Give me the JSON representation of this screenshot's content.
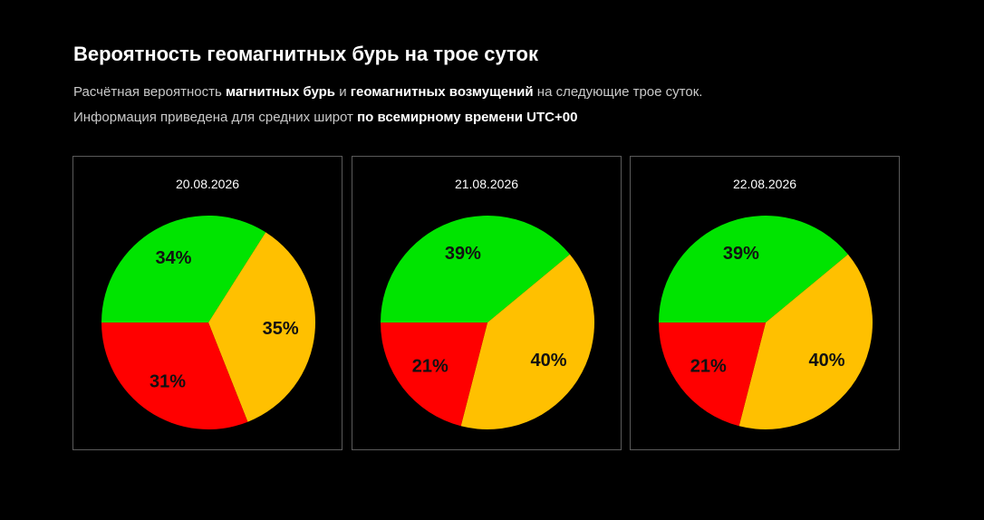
{
  "header": {
    "title": "Вероятность геомагнитных бурь на трое суток",
    "line1": {
      "p1": "Расчётная вероятность ",
      "b1": "магнитных бурь",
      "p2": " и ",
      "b2": "геомагнитных возмущений",
      "p3": " на следующие трое суток."
    },
    "line2": {
      "p1": "Информация приведена для средних широт ",
      "b1": "по всемирному времени UTC+00"
    }
  },
  "colors": {
    "background": "#000000",
    "green": "#00e400",
    "yellow": "#ffc000",
    "red": "#ff0000",
    "panel_border": "#5a5a5a"
  },
  "chart_data": [
    {
      "type": "pie",
      "title": "20.08.2026",
      "slices": [
        {
          "value": 34,
          "label": "34%",
          "color": "#00e400"
        },
        {
          "value": 35,
          "label": "35%",
          "color": "#ffc000"
        },
        {
          "value": 31,
          "label": "31%",
          "color": "#ff0000"
        }
      ]
    },
    {
      "type": "pie",
      "title": "21.08.2026",
      "slices": [
        {
          "value": 39,
          "label": "39%",
          "color": "#00e400"
        },
        {
          "value": 40,
          "label": "40%",
          "color": "#ffc000"
        },
        {
          "value": 21,
          "label": "21%",
          "color": "#ff0000"
        }
      ]
    },
    {
      "type": "pie",
      "title": "22.08.2026",
      "slices": [
        {
          "value": 39,
          "label": "39%",
          "color": "#00e400"
        },
        {
          "value": 40,
          "label": "40%",
          "color": "#ffc000"
        },
        {
          "value": 21,
          "label": "21%",
          "color": "#ff0000"
        }
      ]
    }
  ]
}
